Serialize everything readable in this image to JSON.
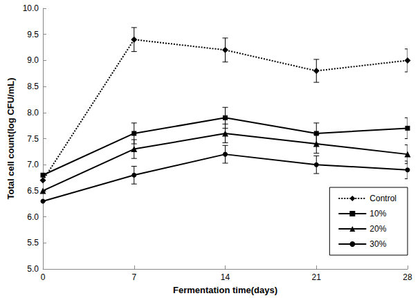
{
  "chart_data": {
    "type": "line",
    "x_label": "Fermentation time(days)",
    "y_label": "Total cell count(log CFU/mL)",
    "x": [
      0,
      7,
      14,
      21,
      28
    ],
    "xlim": [
      0,
      28
    ],
    "xticks": [
      0,
      7,
      14,
      21,
      28
    ],
    "ylim": [
      5,
      10
    ],
    "yticks": [
      {
        "value": 5,
        "label": "5.0"
      },
      {
        "value": 5.5,
        "label": "5.5"
      },
      {
        "value": 6,
        "label": "6.0"
      },
      {
        "value": 6.5,
        "label": "6.5"
      },
      {
        "value": 7,
        "label": "7.0"
      },
      {
        "value": 7.5,
        "label": "7.5"
      },
      {
        "value": 8,
        "label": "8.0"
      },
      {
        "value": 8.5,
        "label": "8.5"
      },
      {
        "value": 9,
        "label": "9.0"
      },
      {
        "value": 9.5,
        "label": "9.5"
      },
      {
        "value": 10,
        "label": "10.0"
      }
    ],
    "grid": false,
    "legend": "lower right",
    "series": [
      {
        "name": "Control",
        "color": "#000000",
        "marker": "diamond",
        "line_style": "dotted",
        "values": [
          6.7,
          9.4,
          9.2,
          8.8,
          9.0
        ],
        "errors": [
          0.0,
          0.23,
          0.23,
          0.22,
          0.22
        ]
      },
      {
        "name": "10%",
        "color": "#000000",
        "marker": "square",
        "line_style": "solid",
        "values": [
          6.8,
          7.6,
          7.9,
          7.6,
          7.7
        ],
        "errors": [
          0.0,
          0.2,
          0.2,
          0.2,
          0.2
        ]
      },
      {
        "name": "20%",
        "color": "#000000",
        "marker": "triangle",
        "line_style": "solid",
        "values": [
          6.5,
          7.3,
          7.6,
          7.4,
          7.2
        ],
        "errors": [
          0.0,
          0.18,
          0.18,
          0.18,
          0.18
        ]
      },
      {
        "name": "30%",
        "color": "#000000",
        "marker": "circle",
        "line_style": "solid",
        "values": [
          6.3,
          6.8,
          7.2,
          7.0,
          6.9
        ],
        "errors": [
          0.0,
          0.17,
          0.17,
          0.17,
          0.17
        ]
      }
    ]
  }
}
